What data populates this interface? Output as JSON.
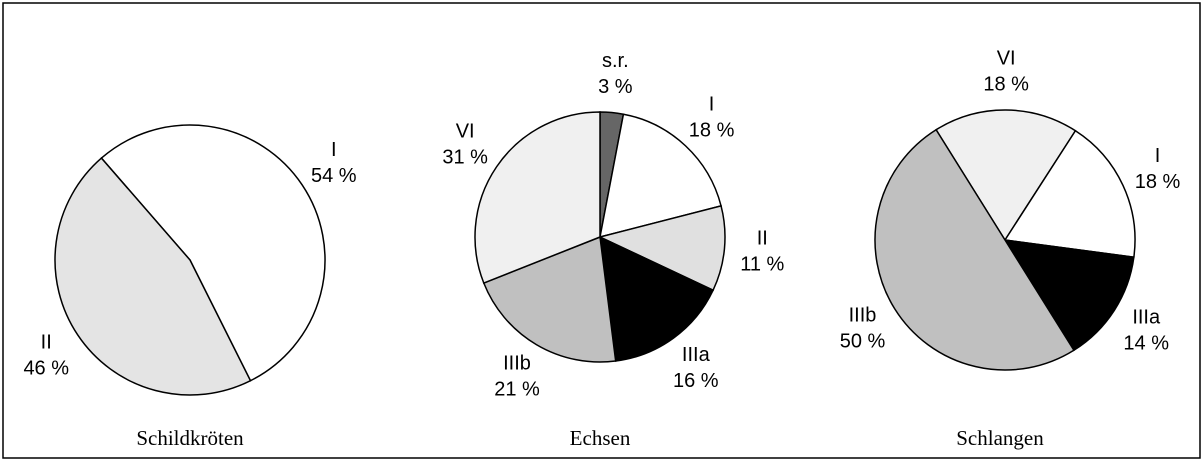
{
  "chart_data": [
    {
      "type": "pie",
      "title": "Schildkröten",
      "categories": [
        "I",
        "II"
      ],
      "values": [
        54,
        46
      ],
      "value_labels": [
        "54 %",
        "46 %"
      ],
      "colors": [
        "#ffffff",
        "#e4e4e4"
      ]
    },
    {
      "type": "pie",
      "title": "Echsen",
      "categories": [
        "s.r.",
        "I",
        "II",
        "IIIa",
        "IIIb",
        "VI"
      ],
      "values": [
        3,
        18,
        11,
        16,
        21,
        31
      ],
      "value_labels": [
        "3 %",
        "18 %",
        "11 %",
        "16 %",
        "21 %",
        "31 %"
      ],
      "colors": [
        "#666666",
        "#ffffff",
        "#e0e0e0",
        "#000000",
        "#c0c0c0",
        "#f0f0f0"
      ]
    },
    {
      "type": "pie",
      "title": "Schlangen",
      "categories": [
        "VI",
        "I",
        "IIIa",
        "IIIb"
      ],
      "values": [
        18,
        18,
        14,
        50
      ],
      "value_labels": [
        "18 %",
        "18 %",
        "14 %",
        "50 %"
      ],
      "colors": [
        "#f0f0f0",
        "#ffffff",
        "#000000",
        "#c0c0c0"
      ]
    }
  ]
}
